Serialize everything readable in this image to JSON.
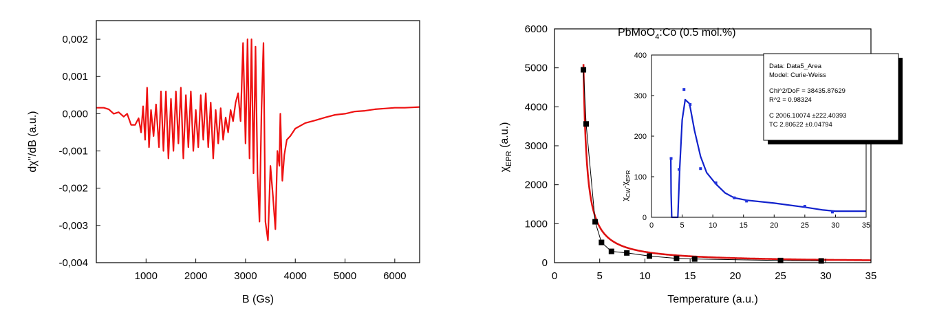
{
  "chart_data": [
    {
      "type": "line",
      "title": "",
      "xlabel": "B (Gs)",
      "ylabel": "dχ''/dB (a.u.)",
      "xlim": [
        0,
        6500
      ],
      "ylim": [
        -0.004,
        0.0025
      ],
      "x_ticks": [
        1000,
        2000,
        3000,
        4000,
        5000,
        6000
      ],
      "x_tick_labels": [
        "1000",
        "2000",
        "3000",
        "4000",
        "5000",
        "6000"
      ],
      "y_ticks": [
        -0.004,
        -0.003,
        -0.002,
        -0.001,
        0.0,
        0.001,
        0.002
      ],
      "y_tick_labels": [
        "-0,004",
        "-0,003",
        "-0,002",
        "-0,001",
        "0,000",
        "0,001",
        "0,002"
      ],
      "grid": false,
      "series": [
        {
          "color": "#ee1111",
          "points": [
            [
              0,
              0.00016
            ],
            [
              150,
              0.00016
            ],
            [
              250,
              0.00012
            ],
            [
              350,
              0.0
            ],
            [
              450,
              4e-05
            ],
            [
              550,
              -8e-05
            ],
            [
              620,
              0.0
            ],
            [
              700,
              -0.0003
            ],
            [
              780,
              -0.0003
            ],
            [
              850,
              -0.00012
            ],
            [
              900,
              -0.0005
            ],
            [
              940,
              0.0002
            ],
            [
              980,
              -0.0007
            ],
            [
              1020,
              0.0007
            ],
            [
              1060,
              -0.0009
            ],
            [
              1100,
              0.0001
            ],
            [
              1150,
              -0.0006
            ],
            [
              1200,
              0.00025
            ],
            [
              1260,
              -0.0009
            ],
            [
              1300,
              0.0006
            ],
            [
              1350,
              -0.001
            ],
            [
              1400,
              0.0006
            ],
            [
              1450,
              -0.0012
            ],
            [
              1500,
              0.0004
            ],
            [
              1550,
              -0.001
            ],
            [
              1600,
              0.0006
            ],
            [
              1650,
              -0.0008
            ],
            [
              1700,
              0.0007
            ],
            [
              1750,
              -0.0012
            ],
            [
              1800,
              0.0005
            ],
            [
              1850,
              -0.0009
            ],
            [
              1900,
              0.0006
            ],
            [
              1950,
              -0.001
            ],
            [
              2000,
              0.0001
            ],
            [
              2050,
              -0.0009
            ],
            [
              2100,
              0.0005
            ],
            [
              2150,
              -0.0007
            ],
            [
              2200,
              0.00055
            ],
            [
              2250,
              -0.0009
            ],
            [
              2300,
              0.0003
            ],
            [
              2350,
              -0.0012
            ],
            [
              2400,
              0.0001
            ],
            [
              2450,
              -0.0008
            ],
            [
              2500,
              0.00015
            ],
            [
              2550,
              -0.0007
            ],
            [
              2600,
              -0.0001
            ],
            [
              2650,
              -0.0005
            ],
            [
              2700,
              0.0001
            ],
            [
              2750,
              -0.0002
            ],
            [
              2800,
              0.0003
            ],
            [
              2850,
              0.00055
            ],
            [
              2900,
              -0.0002
            ],
            [
              2950,
              0.0019
            ],
            [
              3000,
              -0.0008
            ],
            [
              3040,
              0.002
            ],
            [
              3080,
              -0.0012
            ],
            [
              3120,
              0.002
            ],
            [
              3160,
              -0.0016
            ],
            [
              3200,
              0.0018
            ],
            [
              3240,
              -0.0016
            ],
            [
              3280,
              -0.0029
            ],
            [
              3320,
              0.0001
            ],
            [
              3360,
              0.0019
            ],
            [
              3400,
              -0.0029
            ],
            [
              3450,
              -0.0034
            ],
            [
              3500,
              -0.0014
            ],
            [
              3550,
              -0.0022
            ],
            [
              3600,
              -0.0031
            ],
            [
              3640,
              -0.001
            ],
            [
              3680,
              -0.0014
            ],
            [
              3700,
              0.0
            ],
            [
              3740,
              -0.0018
            ],
            [
              3780,
              -0.0011
            ],
            [
              3830,
              -0.0007
            ],
            [
              3900,
              -0.0006
            ],
            [
              4000,
              -0.0004
            ],
            [
              4200,
              -0.00025
            ],
            [
              4400,
              -0.00018
            ],
            [
              4600,
              -0.0001
            ],
            [
              4800,
              -3e-05
            ],
            [
              5000,
              0.0
            ],
            [
              5200,
              6e-05
            ],
            [
              5400,
              8e-05
            ],
            [
              5600,
              0.00012
            ],
            [
              5800,
              0.00014
            ],
            [
              6000,
              0.00016
            ],
            [
              6200,
              0.00016
            ],
            [
              6500,
              0.00018
            ]
          ]
        }
      ]
    },
    {
      "type": "scatter",
      "title": "PbMoO4:Co (0.5 mol.%)",
      "xlabel": "Temperature (a.u.)",
      "ylabel": "χEPR (a.u.)",
      "xlim": [
        0,
        35
      ],
      "ylim": [
        0,
        6000
      ],
      "x_ticks": [
        0,
        5,
        10,
        15,
        20,
        25,
        30,
        35
      ],
      "x_tick_labels": [
        "0",
        "5",
        "10",
        "15",
        "20",
        "25",
        "30",
        "35"
      ],
      "y_ticks": [
        0,
        1000,
        2000,
        3000,
        4000,
        5000,
        6000
      ],
      "y_tick_labels": [
        "0",
        "1000",
        "2000",
        "3000",
        "4000",
        "5000",
        "6000"
      ],
      "grid": false,
      "series": [
        {
          "kind": "scatter-line",
          "color": "#000000",
          "x": [
            3.2,
            3.5,
            4.5,
            5.2,
            6.3,
            8.0,
            10.5,
            13.5,
            15.5,
            25.0,
            29.5
          ],
          "y": [
            4950,
            3560,
            1050,
            520,
            290,
            250,
            170,
            110,
            95,
            55,
            45
          ]
        },
        {
          "kind": "fit",
          "color": "#dd1111",
          "model": "Curie-Weiss",
          "C": 2006.10074,
          "TC": 2.80622,
          "x_range": [
            3.2,
            35
          ]
        }
      ],
      "inset": {
        "xlim": [
          0,
          35
        ],
        "ylim": [
          0,
          400
        ],
        "ylabel": "χCW-χEPR",
        "x_ticks": [
          0,
          5,
          10,
          15,
          20,
          25,
          30,
          35
        ],
        "x_tick_labels": [
          "0",
          "5",
          "10",
          "15",
          "20",
          "25",
          "30",
          "35"
        ],
        "y_ticks": [
          0,
          100,
          200,
          300,
          400
        ],
        "y_tick_labels": [
          "0",
          "100",
          "200",
          "300",
          "400"
        ],
        "points": {
          "color": "#2233dd",
          "x": [
            3.2,
            4.5,
            5.3,
            6.3,
            8.0,
            10.5,
            13.5,
            15.5,
            25.0,
            29.5
          ],
          "y": [
            145,
            118,
            315,
            278,
            120,
            85,
            48,
            40,
            27,
            13
          ]
        },
        "curve": {
          "color": "#1122cc",
          "points": [
            [
              3.15,
              145
            ],
            [
              3.2,
              60
            ],
            [
              3.3,
              0
            ],
            [
              4.3,
              0
            ],
            [
              4.6,
              120
            ],
            [
              5.0,
              240
            ],
            [
              5.5,
              290
            ],
            [
              6.2,
              280
            ],
            [
              7.0,
              215
            ],
            [
              8.0,
              150
            ],
            [
              9.0,
              110
            ],
            [
              10.5,
              82
            ],
            [
              12.0,
              60
            ],
            [
              13.5,
              48
            ],
            [
              15.5,
              42
            ],
            [
              20.0,
              35
            ],
            [
              25.0,
              25
            ],
            [
              28.0,
              18
            ],
            [
              30.0,
              15
            ],
            [
              35.0,
              15
            ]
          ]
        }
      },
      "fit_report": {
        "lines": [
          "Data: Data5_Area",
          "Model: Curie-Weiss",
          "",
          "Chi^2/DoF      = 38435.87629",
          "R^2     =  0.98324",
          "",
          "C          2006.10074       ±222.40393",
          "TC        2.80622             ±0.04794"
        ]
      }
    }
  ]
}
